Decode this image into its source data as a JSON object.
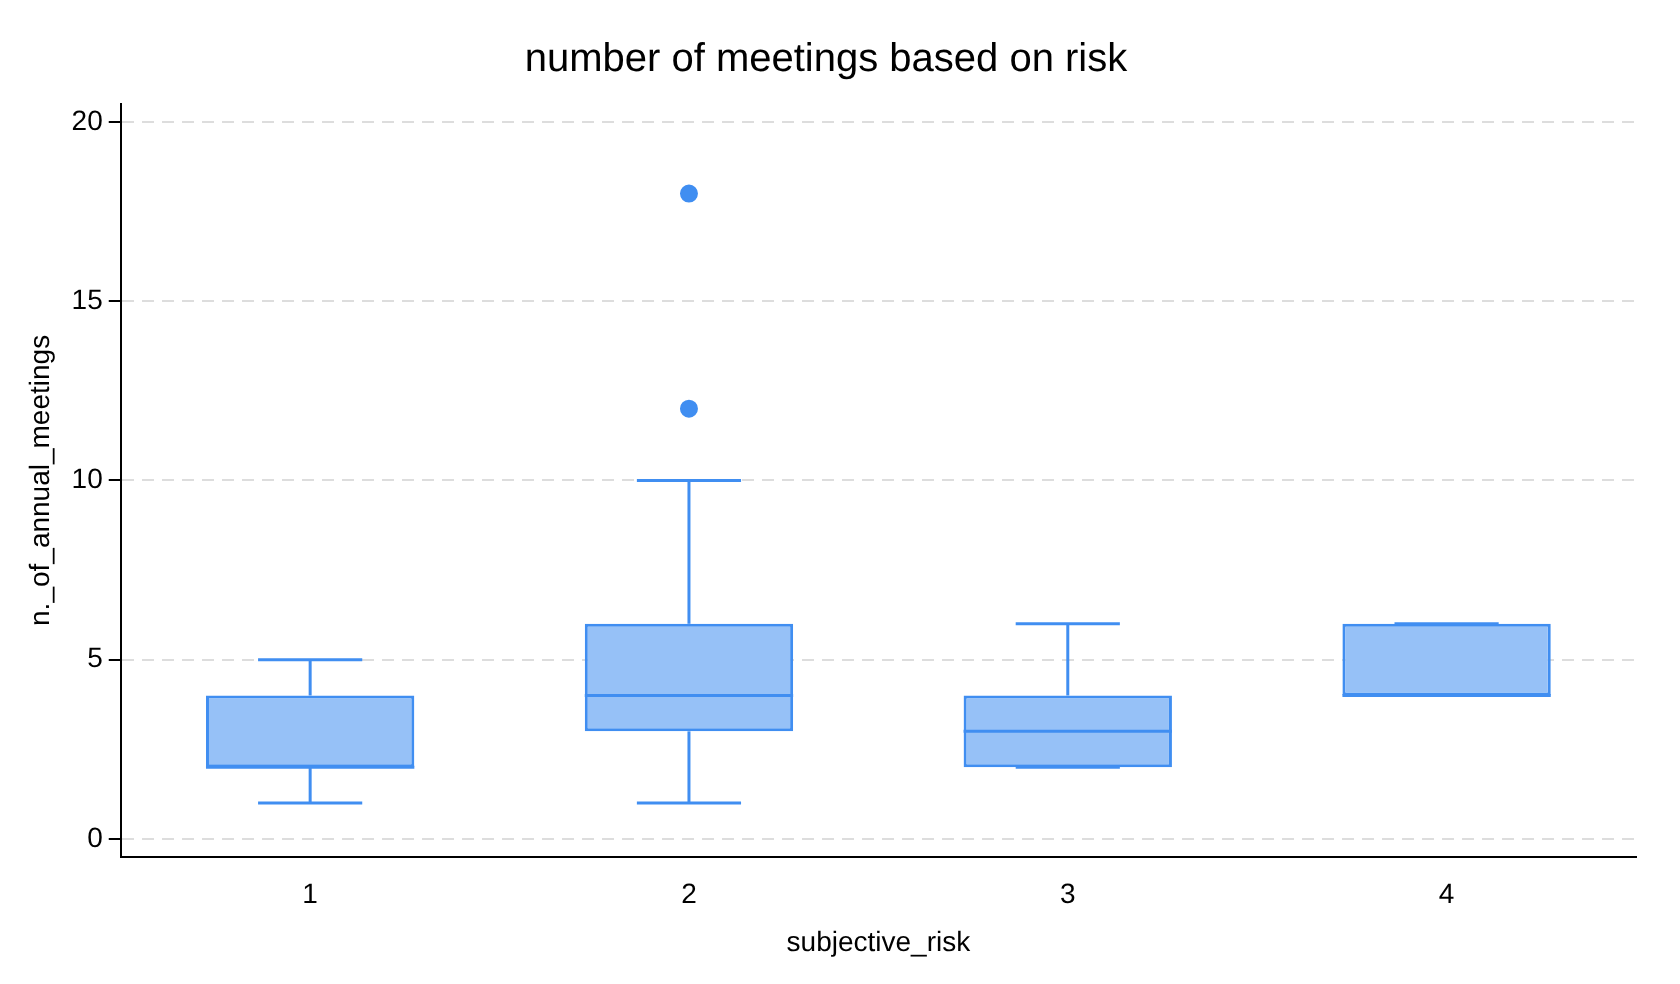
{
  "chart_data": {
    "type": "box",
    "title": "number of meetings based on risk",
    "xlabel": "subjective_risk",
    "ylabel": "n._of_annual_meetings",
    "categories": [
      "1",
      "2",
      "3",
      "4"
    ],
    "color": "#408ef1",
    "boxes": [
      {
        "low": 1,
        "q1": 2,
        "median": 2,
        "q3": 4,
        "high": 5
      },
      {
        "low": 1,
        "q1": 3,
        "median": 4,
        "q3": 6,
        "high": 10,
        "outliers": [
          12,
          18
        ]
      },
      {
        "low": 2,
        "q1": 2,
        "median": 3,
        "q3": 4,
        "high": 6
      },
      {
        "low": 4,
        "q1": 4,
        "median": 4,
        "q3": 6,
        "high": 6
      }
    ],
    "ylim": [
      -0.5,
      20.5
    ],
    "yticks": [
      0,
      5,
      10,
      15,
      20
    ],
    "grid": "y",
    "legend": false
  }
}
